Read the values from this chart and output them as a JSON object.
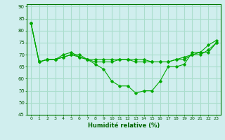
{
  "xlabel": "Humidité relative (%)",
  "bg_color": "#d0eeee",
  "grid_color": "#aaddcc",
  "line_color": "#00aa00",
  "ylim": [
    45,
    91
  ],
  "xlim": [
    -0.5,
    23.5
  ],
  "yticks": [
    45,
    50,
    55,
    60,
    65,
    70,
    75,
    80,
    85,
    90
  ],
  "xticks": [
    0,
    1,
    2,
    3,
    4,
    5,
    6,
    7,
    8,
    9,
    10,
    11,
    12,
    13,
    14,
    15,
    16,
    17,
    18,
    19,
    20,
    21,
    22,
    23
  ],
  "series": [
    [
      83,
      67,
      68,
      68,
      69,
      70,
      70,
      68,
      66,
      64,
      59,
      57,
      57,
      54,
      55,
      55,
      59,
      65,
      65,
      66,
      71,
      71,
      74,
      76
    ],
    [
      83,
      67,
      68,
      68,
      70,
      71,
      69,
      68,
      68,
      68,
      68,
      68,
      68,
      67,
      67,
      67,
      67,
      67,
      68,
      68,
      70,
      71,
      71,
      75
    ],
    [
      83,
      67,
      68,
      68,
      69,
      70,
      69,
      68,
      67,
      67,
      67,
      68,
      68,
      68,
      68,
      67,
      67,
      67,
      68,
      69,
      70,
      70,
      72,
      75
    ]
  ]
}
